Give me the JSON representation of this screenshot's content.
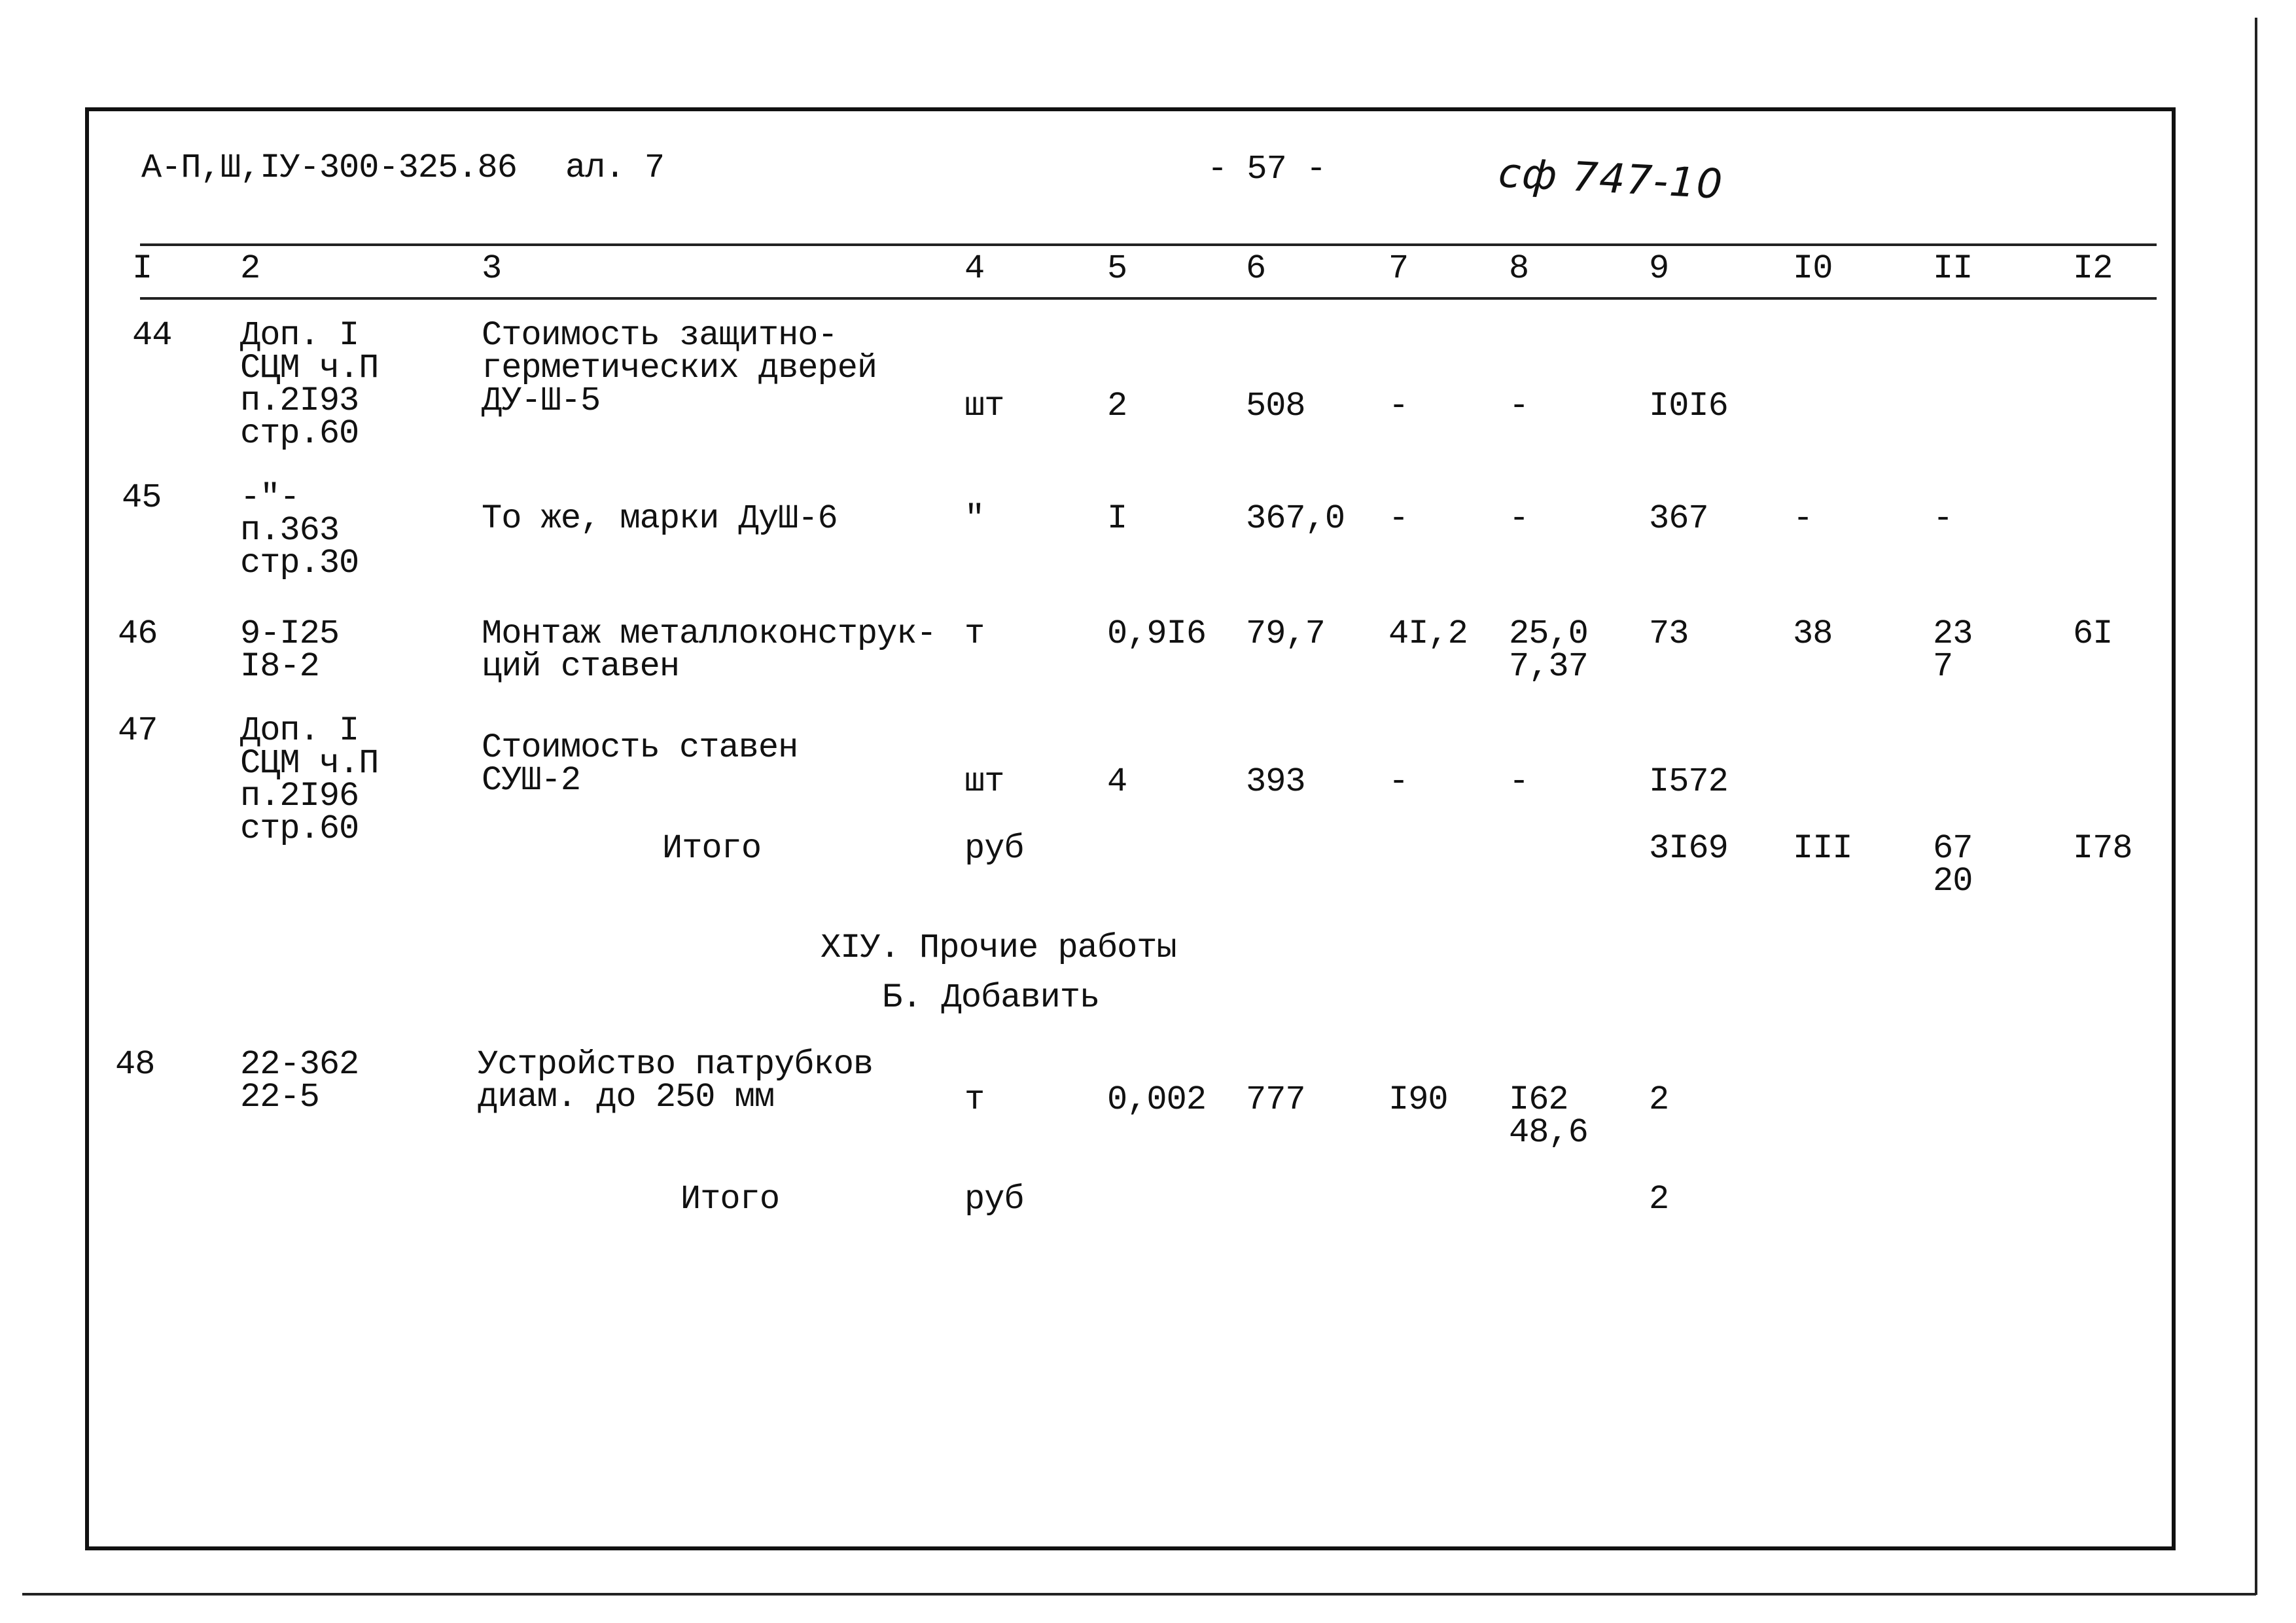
{
  "header": {
    "doc_code": "А-П,Ш,IУ-300-325.86",
    "sheet": "ал. 7",
    "page_number": "- 57 -",
    "handwritten_note": "сф 747-10"
  },
  "column_numbers": [
    "I",
    "2",
    "3",
    "4",
    "5",
    "6",
    "7",
    "8",
    "9",
    "I0",
    "II",
    "I2"
  ],
  "rows": [
    {
      "c1": "44",
      "c2": "Доп. I\nСЦМ ч.П\nп.2I93\nстр.60",
      "c3": "Стоимость защитно-\nгерметических дверей\nДУ-Ш-5",
      "c4": "шт",
      "c5": "2",
      "c6": "508",
      "c7": "-",
      "c8": "-",
      "c9": "I0I6",
      "c10": "",
      "c11": "",
      "c12": ""
    },
    {
      "c1": "45",
      "c2": "-\"-\nп.363\nстр.30",
      "c3": "То же, марки ДуШ-6",
      "c4": "\"",
      "c5": "I",
      "c6": "367,0",
      "c7": "-",
      "c8": "-",
      "c9": "367",
      "c10": "-",
      "c11": "-",
      "c12": ""
    },
    {
      "c1": "46",
      "c2": "9-I25\nI8-2",
      "c3": "Монтаж металлоконструк-\nций ставен",
      "c4": "т",
      "c5": "0,9I6",
      "c6": "79,7",
      "c7": "4I,2",
      "c8": "25,0\n7,37",
      "c9": "73",
      "c10": "38",
      "c11": "23\n7",
      "c12": "6I"
    },
    {
      "c1": "47",
      "c2": "Доп. I\nСЦМ ч.П\nп.2I96\nстр.60",
      "c3": "Стоимость ставен\nСУШ-2",
      "c4": "шт",
      "c5": "4",
      "c6": "393",
      "c7": "-",
      "c8": "-",
      "c9": "I572",
      "c10": "",
      "c11": "",
      "c12": ""
    },
    {
      "c1": "",
      "c2": "",
      "c3": "Итого",
      "c4": "руб",
      "c5": "",
      "c6": "",
      "c7": "",
      "c8": "",
      "c9": "3I69",
      "c10": "III",
      "c11": "67\n20",
      "c12": "I78"
    },
    {
      "c1": "48",
      "c2": "22-362\n22-5",
      "c3": "Устройство патрубков\nдиам. до 250 мм",
      "c4": "т",
      "c5": "0,002",
      "c6": "777",
      "c7": "I90",
      "c8": "I62\n48,6",
      "c9": "2",
      "c10": "",
      "c11": "",
      "c12": ""
    },
    {
      "c1": "",
      "c2": "",
      "c3": "Итого",
      "c4": "руб",
      "c5": "",
      "c6": "",
      "c7": "",
      "c8": "",
      "c9": "2",
      "c10": "",
      "c11": "",
      "c12": ""
    }
  ],
  "section": {
    "title": "XIУ. Прочие работы",
    "subtitle": "Б. Добавить"
  }
}
